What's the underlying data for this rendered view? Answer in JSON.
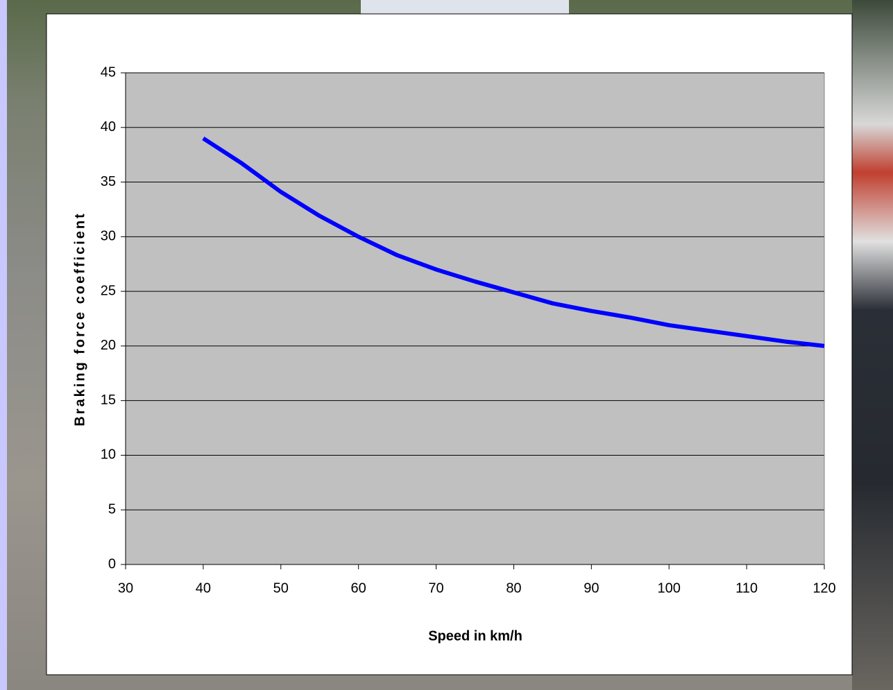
{
  "chart_data": {
    "type": "line",
    "x_label": "Speed in km/h",
    "y_label": "Braking force coefficient",
    "x": [
      40,
      45,
      50,
      55,
      60,
      65,
      70,
      75,
      80,
      85,
      90,
      95,
      100,
      105,
      110,
      115,
      120
    ],
    "series": [
      {
        "color": "#0000ff",
        "values": [
          39,
          36.7,
          34.1,
          31.9,
          30,
          28.3,
          27,
          25.9,
          24.9,
          23.9,
          23.2,
          22.6,
          21.9,
          21.4,
          20.9,
          20.4,
          20
        ]
      }
    ],
    "xlim": [
      30,
      120
    ],
    "xticks": [
      30,
      40,
      50,
      60,
      70,
      80,
      90,
      100,
      110,
      120
    ],
    "ylim": [
      0,
      45
    ],
    "yticks": [
      0,
      5,
      10,
      15,
      20,
      25,
      30,
      35,
      40,
      45
    ],
    "grid": true
  }
}
